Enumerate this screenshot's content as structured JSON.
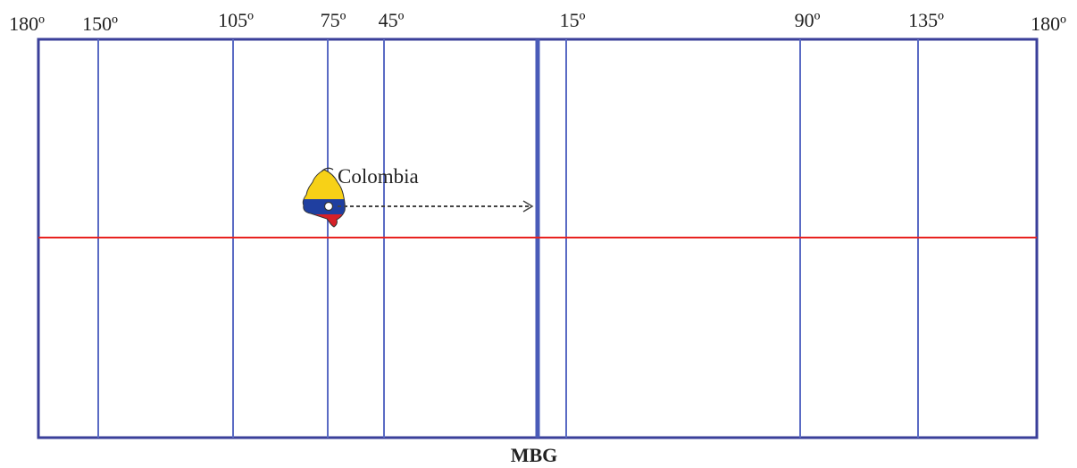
{
  "longitude_labels": [
    "180º",
    "150º",
    "105º",
    "75º",
    "45º",
    "15º",
    "90º",
    "135º",
    "180º"
  ],
  "country_label": "Colombia",
  "meridian_label": "MBG",
  "colors": {
    "frame": "#3a3f9a",
    "meridian": "#5a6bc4",
    "equator": "#e8221f",
    "arrow": "#444444",
    "flag_yellow": "#f7d117",
    "flag_blue": "#1f3fa0",
    "flag_red": "#d62027"
  }
}
